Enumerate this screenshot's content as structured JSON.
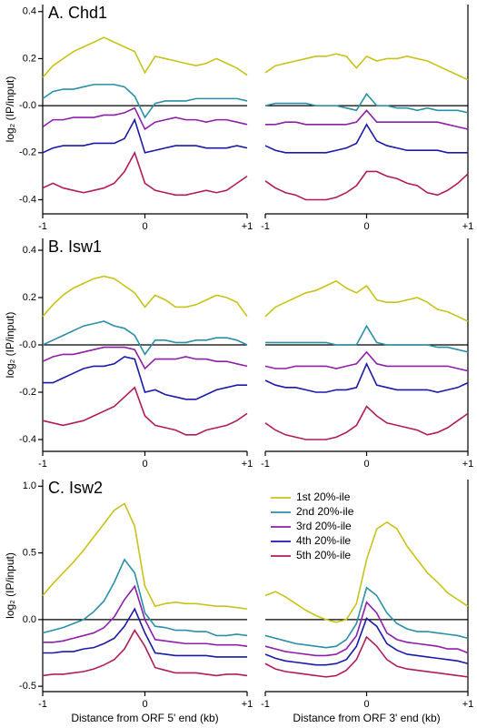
{
  "chart_data": [
    {
      "type": "line",
      "title": "A. Chd1",
      "ylabel": "log₂ (IP/input)",
      "x": [
        -1,
        -0.9,
        -0.8,
        -0.7,
        -0.6,
        -0.5,
        -0.4,
        -0.3,
        -0.2,
        -0.1,
        0,
        0.1,
        0.2,
        0.3,
        0.4,
        0.5,
        0.6,
        0.7,
        0.8,
        0.9,
        1
      ],
      "xlim": [
        -1,
        1
      ],
      "xticks": [
        -1,
        0,
        {
          "value": 1,
          "label": "+1"
        }
      ],
      "ylim": [
        -0.46,
        0.43
      ],
      "yticks": [
        0.4,
        0.2,
        {
          "value": 0,
          "label": "-0.0"
        },
        -0.2,
        -0.4
      ],
      "reference_line": 0,
      "series": [
        {
          "color": "#c8c21a",
          "values": [
            0.12,
            0.17,
            0.2,
            0.23,
            0.25,
            0.27,
            0.29,
            0.27,
            0.25,
            0.23,
            0.14,
            0.21,
            0.2,
            0.19,
            0.18,
            0.17,
            0.18,
            0.2,
            0.18,
            0.16,
            0.13
          ]
        },
        {
          "color": "#2a8fa8",
          "values": [
            0.03,
            0.06,
            0.07,
            0.07,
            0.08,
            0.09,
            0.09,
            0.09,
            0.08,
            0.04,
            -0.05,
            0.01,
            0.02,
            0.02,
            0.02,
            0.03,
            0.03,
            0.03,
            0.03,
            0.03,
            0.02
          ]
        },
        {
          "color": "#8e1fa8",
          "values": [
            -0.09,
            -0.06,
            -0.06,
            -0.05,
            -0.05,
            -0.05,
            -0.04,
            -0.04,
            -0.03,
            -0.01,
            -0.1,
            -0.07,
            -0.06,
            -0.05,
            -0.06,
            -0.06,
            -0.07,
            -0.06,
            -0.06,
            -0.07,
            -0.08
          ]
        },
        {
          "color": "#1a1aa8",
          "values": [
            -0.2,
            -0.18,
            -0.17,
            -0.17,
            -0.17,
            -0.16,
            -0.16,
            -0.16,
            -0.14,
            -0.06,
            -0.2,
            -0.19,
            -0.18,
            -0.17,
            -0.17,
            -0.17,
            -0.18,
            -0.18,
            -0.18,
            -0.17,
            -0.18
          ]
        },
        {
          "color": "#b01c5a",
          "values": [
            -0.35,
            -0.33,
            -0.35,
            -0.36,
            -0.37,
            -0.36,
            -0.35,
            -0.33,
            -0.28,
            -0.2,
            -0.33,
            -0.36,
            -0.37,
            -0.38,
            -0.38,
            -0.37,
            -0.36,
            -0.37,
            -0.36,
            -0.33,
            -0.3
          ]
        }
      ]
    },
    {
      "type": "line",
      "x": [
        -1,
        -0.9,
        -0.8,
        -0.7,
        -0.6,
        -0.5,
        -0.4,
        -0.3,
        -0.2,
        -0.1,
        0,
        0.1,
        0.2,
        0.3,
        0.4,
        0.5,
        0.6,
        0.7,
        0.8,
        0.9,
        1
      ],
      "xlim": [
        -1,
        1
      ],
      "xticks": [
        -1,
        0,
        {
          "value": 1,
          "label": "+1"
        }
      ],
      "ylim": [
        -0.46,
        0.43
      ],
      "reference_line": 0,
      "series": [
        {
          "color": "#c8c21a",
          "values": [
            0.14,
            0.17,
            0.18,
            0.19,
            0.2,
            0.21,
            0.21,
            0.22,
            0.21,
            0.16,
            0.21,
            0.19,
            0.2,
            0.2,
            0.21,
            0.2,
            0.19,
            0.17,
            0.15,
            0.13,
            0.11
          ]
        },
        {
          "color": "#2a8fa8",
          "values": [
            0.0,
            0.01,
            0.01,
            0.01,
            0.01,
            0.0,
            0.0,
            0.0,
            -0.01,
            -0.02,
            0.05,
            0.0,
            0.0,
            -0.01,
            -0.01,
            -0.02,
            -0.01,
            -0.02,
            -0.02,
            -0.02,
            -0.03
          ]
        },
        {
          "color": "#8e1fa8",
          "values": [
            -0.08,
            -0.08,
            -0.07,
            -0.07,
            -0.08,
            -0.08,
            -0.08,
            -0.08,
            -0.08,
            -0.07,
            -0.02,
            -0.07,
            -0.07,
            -0.07,
            -0.07,
            -0.07,
            -0.07,
            -0.07,
            -0.08,
            -0.09,
            -0.1
          ]
        },
        {
          "color": "#1a1aa8",
          "values": [
            -0.17,
            -0.19,
            -0.2,
            -0.2,
            -0.2,
            -0.2,
            -0.2,
            -0.19,
            -0.18,
            -0.16,
            -0.08,
            -0.15,
            -0.17,
            -0.18,
            -0.19,
            -0.19,
            -0.19,
            -0.19,
            -0.2,
            -0.2,
            -0.2
          ]
        },
        {
          "color": "#b01c5a",
          "values": [
            -0.32,
            -0.35,
            -0.37,
            -0.38,
            -0.4,
            -0.4,
            -0.4,
            -0.39,
            -0.37,
            -0.34,
            -0.28,
            -0.28,
            -0.3,
            -0.31,
            -0.33,
            -0.34,
            -0.37,
            -0.38,
            -0.36,
            -0.33,
            -0.29
          ]
        }
      ]
    },
    {
      "type": "line",
      "title": "B. Isw1",
      "ylabel": "log₂ (IP/input)",
      "x": [
        -1,
        -0.9,
        -0.8,
        -0.7,
        -0.6,
        -0.5,
        -0.4,
        -0.3,
        -0.2,
        -0.1,
        0,
        0.1,
        0.2,
        0.3,
        0.4,
        0.5,
        0.6,
        0.7,
        0.8,
        0.9,
        1
      ],
      "xlim": [
        -1,
        1
      ],
      "xticks": [
        -1,
        0,
        {
          "value": 1,
          "label": "+1"
        }
      ],
      "ylim": [
        -0.45,
        0.45
      ],
      "yticks": [
        0.4,
        0.2,
        {
          "value": 0,
          "label": "-0.0"
        },
        -0.2,
        -0.4
      ],
      "reference_line": 0,
      "series": [
        {
          "color": "#c8c21a",
          "values": [
            0.12,
            0.17,
            0.21,
            0.24,
            0.26,
            0.28,
            0.29,
            0.28,
            0.25,
            0.22,
            0.16,
            0.21,
            0.19,
            0.16,
            0.16,
            0.17,
            0.19,
            0.21,
            0.2,
            0.18,
            0.12
          ]
        },
        {
          "color": "#2a8fa8",
          "values": [
            0.0,
            0.02,
            0.04,
            0.06,
            0.08,
            0.09,
            0.1,
            0.08,
            0.07,
            0.04,
            -0.04,
            0.02,
            0.02,
            0.01,
            0.01,
            0.02,
            0.02,
            0.03,
            0.03,
            0.02,
            0.0
          ]
        },
        {
          "color": "#8e1fa8",
          "values": [
            -0.07,
            -0.05,
            -0.04,
            -0.04,
            -0.03,
            -0.02,
            -0.01,
            -0.01,
            -0.01,
            -0.02,
            -0.1,
            -0.06,
            -0.06,
            -0.06,
            -0.05,
            -0.06,
            -0.06,
            -0.07,
            -0.07,
            -0.08,
            -0.09
          ]
        },
        {
          "color": "#1a1aa8",
          "values": [
            -0.16,
            -0.16,
            -0.14,
            -0.12,
            -0.1,
            -0.09,
            -0.09,
            -0.08,
            -0.05,
            -0.06,
            -0.2,
            -0.19,
            -0.21,
            -0.22,
            -0.23,
            -0.23,
            -0.21,
            -0.19,
            -0.18,
            -0.17,
            -0.17
          ]
        },
        {
          "color": "#b01c5a",
          "values": [
            -0.32,
            -0.33,
            -0.34,
            -0.33,
            -0.32,
            -0.3,
            -0.28,
            -0.26,
            -0.22,
            -0.18,
            -0.3,
            -0.34,
            -0.35,
            -0.36,
            -0.38,
            -0.38,
            -0.36,
            -0.35,
            -0.34,
            -0.32,
            -0.29
          ]
        }
      ]
    },
    {
      "type": "line",
      "x": [
        -1,
        -0.9,
        -0.8,
        -0.7,
        -0.6,
        -0.5,
        -0.4,
        -0.3,
        -0.2,
        -0.1,
        0,
        0.1,
        0.2,
        0.3,
        0.4,
        0.5,
        0.6,
        0.7,
        0.8,
        0.9,
        1
      ],
      "xlim": [
        -1,
        1
      ],
      "xticks": [
        -1,
        0,
        {
          "value": 1,
          "label": "+1"
        }
      ],
      "ylim": [
        -0.45,
        0.45
      ],
      "reference_line": 0,
      "series": [
        {
          "color": "#c8c21a",
          "values": [
            0.12,
            0.16,
            0.18,
            0.2,
            0.22,
            0.23,
            0.25,
            0.27,
            0.24,
            0.22,
            0.25,
            0.19,
            0.18,
            0.18,
            0.19,
            0.2,
            0.18,
            0.15,
            0.14,
            0.12,
            0.1
          ]
        },
        {
          "color": "#2a8fa8",
          "values": [
            0.01,
            0.01,
            0.01,
            0.01,
            0.01,
            0.01,
            0.01,
            0.0,
            0.0,
            0.0,
            0.08,
            0.01,
            0.0,
            0.0,
            0.0,
            0.0,
            0.0,
            -0.01,
            -0.01,
            -0.02,
            -0.03
          ]
        },
        {
          "color": "#8e1fa8",
          "values": [
            -0.09,
            -0.1,
            -0.1,
            -0.09,
            -0.09,
            -0.09,
            -0.09,
            -0.1,
            -0.09,
            -0.08,
            -0.03,
            -0.08,
            -0.09,
            -0.09,
            -0.09,
            -0.09,
            -0.09,
            -0.09,
            -0.09,
            -0.1,
            -0.11
          ]
        },
        {
          "color": "#1a1aa8",
          "values": [
            -0.15,
            -0.17,
            -0.18,
            -0.18,
            -0.19,
            -0.2,
            -0.2,
            -0.19,
            -0.19,
            -0.18,
            -0.08,
            -0.17,
            -0.18,
            -0.19,
            -0.19,
            -0.19,
            -0.19,
            -0.2,
            -0.19,
            -0.18,
            -0.16
          ]
        },
        {
          "color": "#b01c5a",
          "values": [
            -0.33,
            -0.36,
            -0.38,
            -0.39,
            -0.4,
            -0.4,
            -0.4,
            -0.39,
            -0.37,
            -0.34,
            -0.26,
            -0.3,
            -0.33,
            -0.34,
            -0.35,
            -0.36,
            -0.38,
            -0.37,
            -0.35,
            -0.32,
            -0.29
          ]
        }
      ]
    },
    {
      "type": "line",
      "title": "C. Isw2",
      "ylabel": "log₂ (IP/input)",
      "xlabel": "Distance from ORF 5' end (kb)",
      "x": [
        -1,
        -0.9,
        -0.8,
        -0.7,
        -0.6,
        -0.5,
        -0.4,
        -0.3,
        -0.2,
        -0.1,
        0,
        0.1,
        0.2,
        0.3,
        0.4,
        0.5,
        0.6,
        0.7,
        0.8,
        0.9,
        1
      ],
      "xlim": [
        -1,
        1
      ],
      "xticks": [
        -1,
        0,
        {
          "value": 1,
          "label": "+1"
        }
      ],
      "ylim": [
        -0.54,
        1.05
      ],
      "yticks": [
        {
          "value": 1,
          "label": "1.0"
        },
        0.5,
        {
          "value": 0,
          "label": "0.0"
        },
        -0.5
      ],
      "reference_line": 0,
      "series": [
        {
          "color": "#c8c21a",
          "values": [
            0.18,
            0.27,
            0.35,
            0.43,
            0.52,
            0.62,
            0.72,
            0.82,
            0.87,
            0.7,
            0.25,
            0.1,
            0.12,
            0.13,
            0.12,
            0.12,
            0.11,
            0.1,
            0.1,
            0.09,
            0.08
          ]
        },
        {
          "color": "#2a8fa8",
          "values": [
            -0.1,
            -0.08,
            -0.06,
            -0.03,
            0.0,
            0.06,
            0.14,
            0.28,
            0.45,
            0.35,
            0.05,
            -0.05,
            -0.06,
            -0.08,
            -0.08,
            -0.09,
            -0.09,
            -0.12,
            -0.12,
            -0.11,
            -0.12
          ]
        },
        {
          "color": "#8e1fa8",
          "values": [
            -0.17,
            -0.17,
            -0.16,
            -0.14,
            -0.12,
            -0.1,
            -0.06,
            0.02,
            0.15,
            0.25,
            0.0,
            -0.15,
            -0.16,
            -0.17,
            -0.18,
            -0.18,
            -0.18,
            -0.19,
            -0.19,
            -0.19,
            -0.2
          ]
        },
        {
          "color": "#1a1aa8",
          "values": [
            -0.25,
            -0.25,
            -0.24,
            -0.24,
            -0.22,
            -0.21,
            -0.18,
            -0.14,
            -0.05,
            0.08,
            -0.1,
            -0.25,
            -0.26,
            -0.27,
            -0.27,
            -0.27,
            -0.27,
            -0.28,
            -0.28,
            -0.28,
            -0.28
          ]
        },
        {
          "color": "#b01c5a",
          "values": [
            -0.42,
            -0.41,
            -0.41,
            -0.4,
            -0.39,
            -0.37,
            -0.34,
            -0.3,
            -0.22,
            -0.08,
            -0.2,
            -0.36,
            -0.38,
            -0.4,
            -0.4,
            -0.4,
            -0.41,
            -0.42,
            -0.41,
            -0.41,
            -0.42
          ]
        }
      ]
    },
    {
      "type": "line",
      "xlabel": "Distance from ORF 3' end (kb)",
      "legend": "upper left",
      "x": [
        -1,
        -0.9,
        -0.8,
        -0.7,
        -0.6,
        -0.5,
        -0.4,
        -0.3,
        -0.2,
        -0.1,
        0,
        0.1,
        0.2,
        0.3,
        0.4,
        0.5,
        0.6,
        0.7,
        0.8,
        0.9,
        1
      ],
      "xlim": [
        -1,
        1
      ],
      "xticks": [
        -1,
        0,
        {
          "value": 1,
          "label": "+1"
        }
      ],
      "ylim": [
        -0.54,
        1.05
      ],
      "reference_line": 0,
      "series": [
        {
          "name": "1st 20%-ile",
          "color": "#c8c21a",
          "values": [
            0.18,
            0.21,
            0.17,
            0.12,
            0.07,
            0.03,
            0.0,
            -0.02,
            0.0,
            0.12,
            0.45,
            0.68,
            0.73,
            0.68,
            0.55,
            0.45,
            0.35,
            0.28,
            0.2,
            0.15,
            0.1
          ]
        },
        {
          "name": "2nd 20%-ile",
          "color": "#2a8fa8",
          "values": [
            -0.12,
            -0.14,
            -0.16,
            -0.18,
            -0.19,
            -0.2,
            -0.21,
            -0.2,
            -0.15,
            -0.03,
            0.24,
            0.18,
            0.05,
            -0.03,
            -0.07,
            -0.09,
            -0.09,
            -0.1,
            -0.11,
            -0.12,
            -0.14
          ]
        },
        {
          "name": "3rd 20%-ile",
          "color": "#8e1fa8",
          "values": [
            -0.2,
            -0.22,
            -0.24,
            -0.25,
            -0.26,
            -0.27,
            -0.27,
            -0.26,
            -0.22,
            -0.12,
            0.13,
            0.05,
            -0.1,
            -0.15,
            -0.17,
            -0.18,
            -0.19,
            -0.2,
            -0.22,
            -0.22,
            -0.25
          ]
        },
        {
          "name": "4th 20%-ile",
          "color": "#1a1aa8",
          "values": [
            -0.26,
            -0.29,
            -0.31,
            -0.32,
            -0.33,
            -0.34,
            -0.34,
            -0.33,
            -0.3,
            -0.2,
            0.01,
            -0.05,
            -0.18,
            -0.23,
            -0.26,
            -0.27,
            -0.28,
            -0.29,
            -0.3,
            -0.31,
            -0.33
          ]
        },
        {
          "name": "5th 20%-ile",
          "color": "#b01c5a",
          "values": [
            -0.33,
            -0.37,
            -0.39,
            -0.4,
            -0.41,
            -0.42,
            -0.43,
            -0.42,
            -0.38,
            -0.3,
            -0.13,
            -0.2,
            -0.3,
            -0.35,
            -0.37,
            -0.38,
            -0.39,
            -0.4,
            -0.41,
            -0.42,
            -0.43
          ]
        }
      ]
    }
  ]
}
